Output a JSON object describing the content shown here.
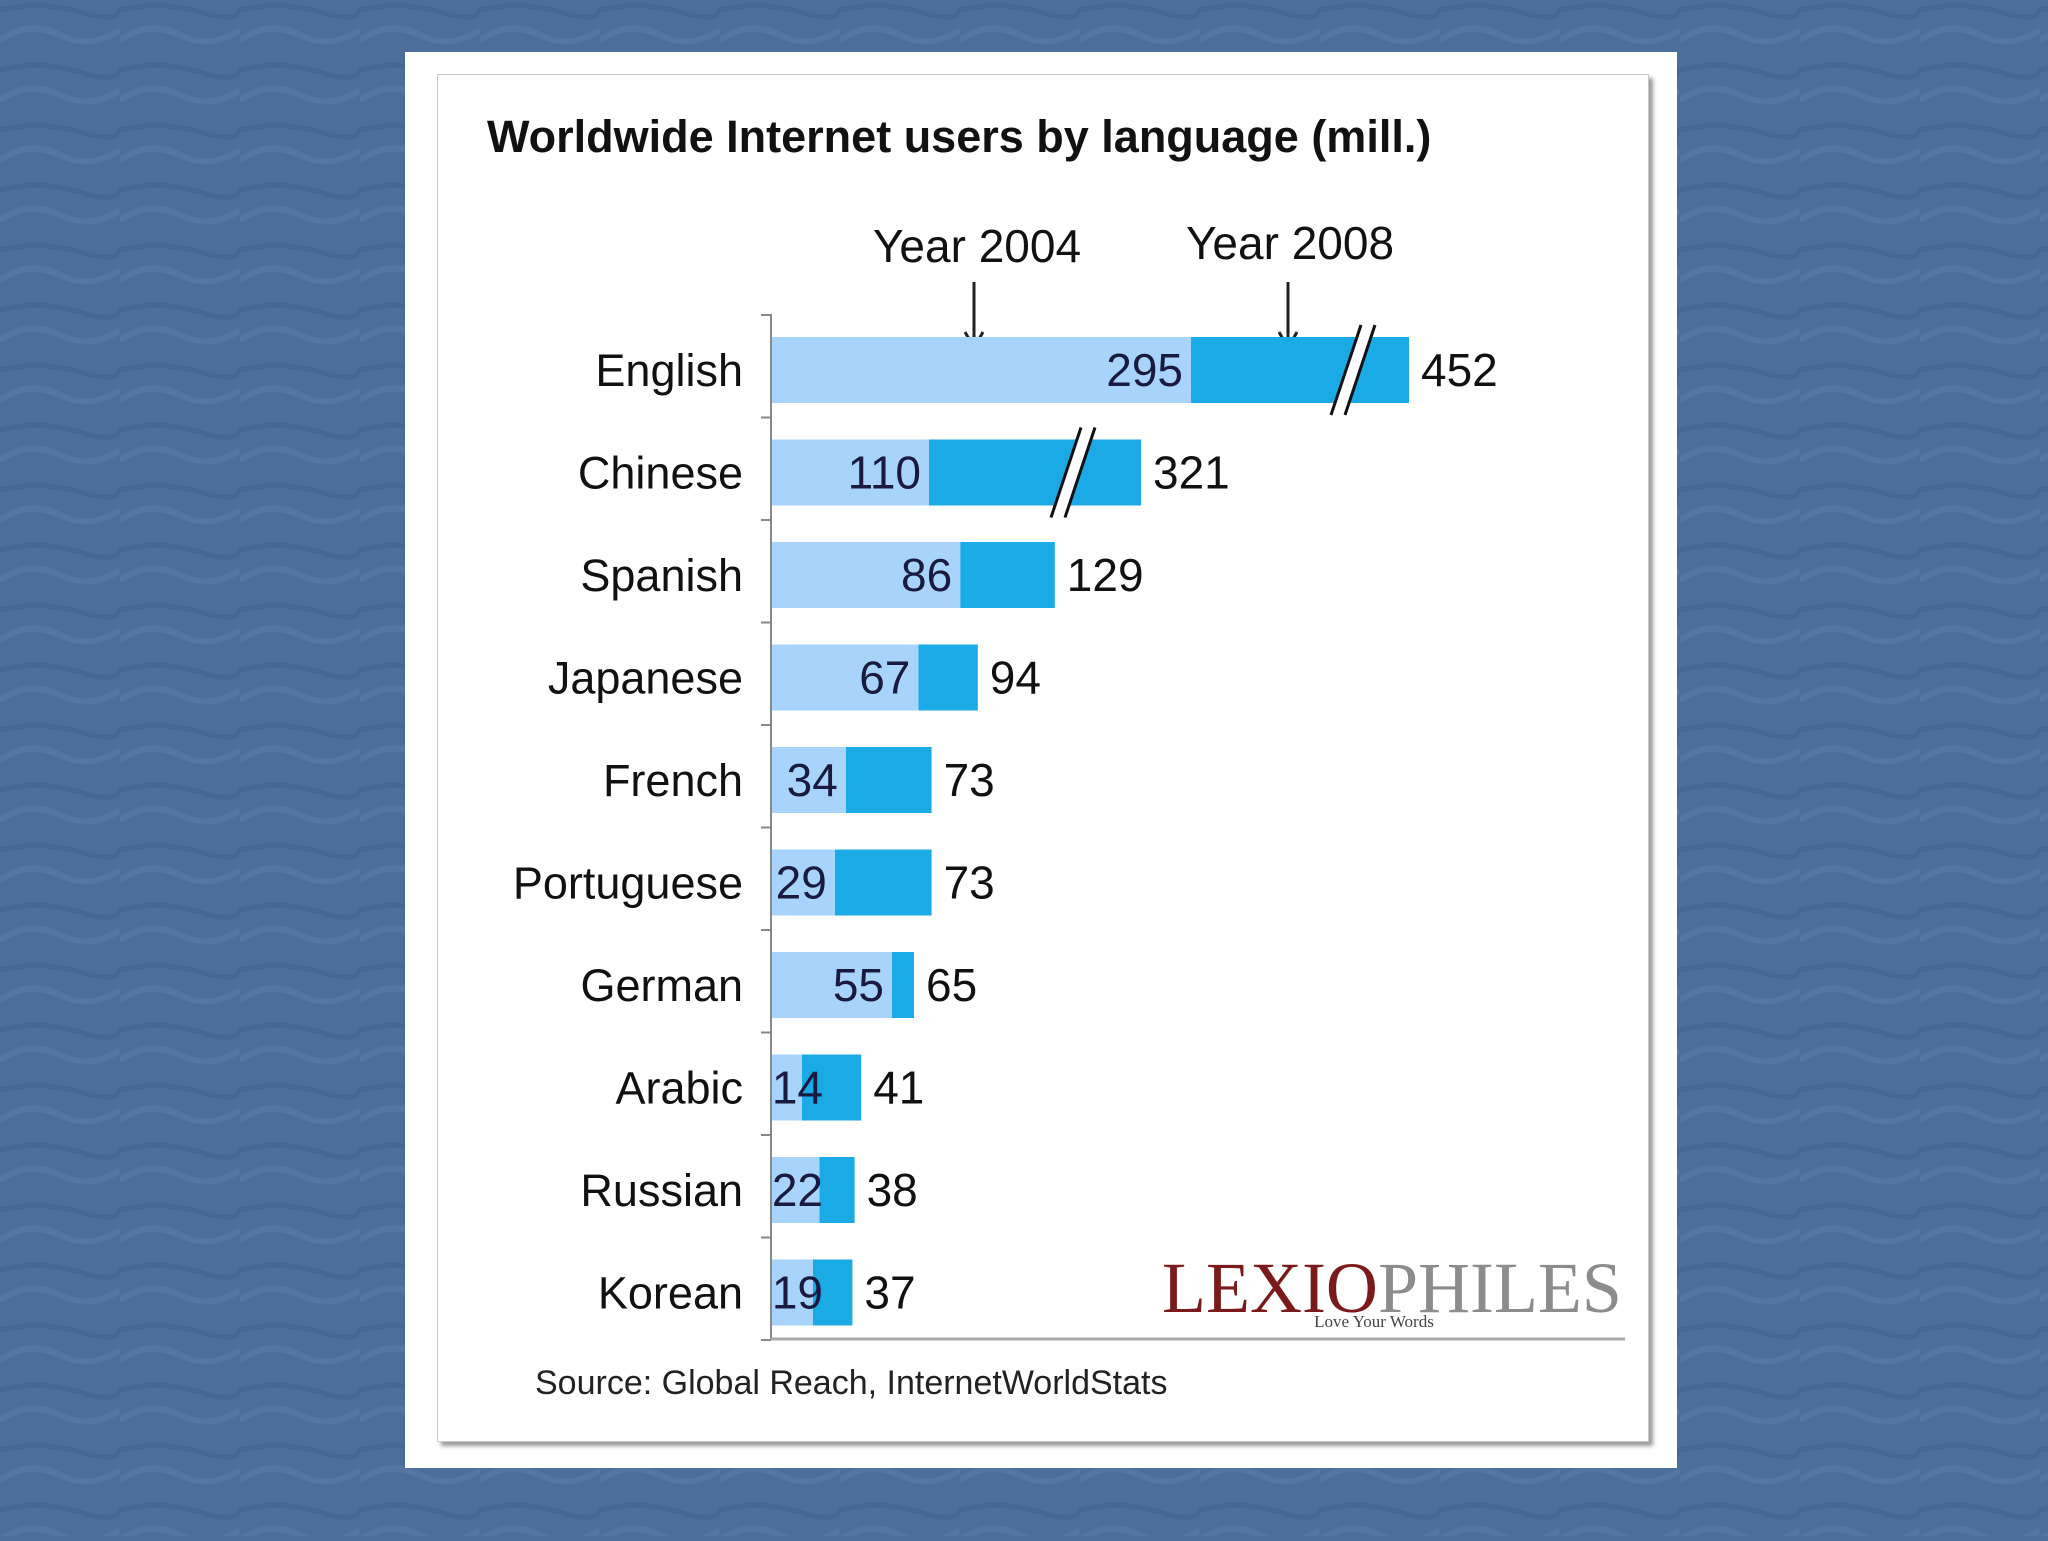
{
  "colors": {
    "background": "#4b6e9b",
    "bar_2004": "#a8d4fb",
    "bar_2008": "#1aaae6",
    "logo_lexio": "#7a1a1a",
    "logo_philes": "#8c8c8c"
  },
  "source": "Source: Global Reach, InternetWorldStats",
  "logo": {
    "part1": "LEXIO",
    "part2": "PHILES",
    "tagline": "Love Your Words"
  },
  "chart_data": {
    "type": "bar",
    "orientation": "horizontal",
    "title": "Worldwide Internet users by language (mill.)",
    "annotations": [
      "Year 2004",
      "Year 2008"
    ],
    "axis_break_categories": [
      "English",
      "Chinese"
    ],
    "categories": [
      "English",
      "Chinese",
      "Spanish",
      "Japanese",
      "French",
      "Portuguese",
      "German",
      "Arabic",
      "Russian",
      "Korean"
    ],
    "series": [
      {
        "name": "Year 2004",
        "values": [
          295,
          110,
          86,
          67,
          34,
          29,
          55,
          14,
          22,
          19
        ]
      },
      {
        "name": "Year 2008",
        "values": [
          452,
          321,
          129,
          94,
          73,
          73,
          65,
          41,
          38,
          37
        ]
      }
    ]
  }
}
